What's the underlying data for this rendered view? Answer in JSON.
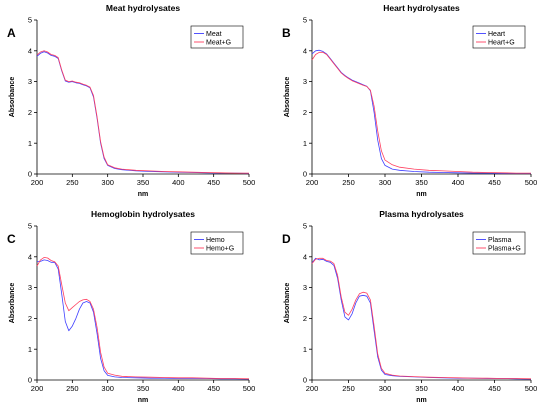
{
  "chart_data": [
    {
      "type": "line",
      "panel": "A",
      "title": "Meat hydrolysates",
      "xlabel": "nm",
      "ylabel": "Absorbance",
      "xlim": [
        200,
        500
      ],
      "ylim": [
        0,
        5
      ],
      "xticks": [
        200,
        250,
        300,
        350,
        400,
        450,
        500
      ],
      "yticks": [
        0,
        1,
        2,
        3,
        4,
        5
      ],
      "legend_position": "top-right",
      "colors": [
        "#3f3fff",
        "#ff3f5f"
      ],
      "series": [
        {
          "name": "Meat",
          "x": [
            200,
            205,
            210,
            215,
            220,
            225,
            230,
            235,
            240,
            245,
            250,
            255,
            260,
            265,
            270,
            275,
            280,
            285,
            290,
            295,
            300,
            310,
            320,
            340,
            360,
            380,
            400,
            420,
            440,
            460,
            480,
            500
          ],
          "y": [
            3.82,
            3.92,
            3.97,
            3.93,
            3.85,
            3.82,
            3.75,
            3.35,
            3.02,
            2.98,
            3.0,
            2.96,
            2.94,
            2.9,
            2.86,
            2.8,
            2.5,
            1.8,
            1.0,
            0.5,
            0.28,
            0.18,
            0.14,
            0.1,
            0.08,
            0.07,
            0.06,
            0.05,
            0.04,
            0.03,
            0.03,
            0.02
          ]
        },
        {
          "name": "Meat+G",
          "x": [
            200,
            205,
            210,
            215,
            220,
            225,
            230,
            235,
            240,
            245,
            250,
            255,
            260,
            265,
            270,
            275,
            280,
            285,
            290,
            295,
            300,
            310,
            320,
            340,
            360,
            380,
            400,
            420,
            440,
            460,
            480,
            500
          ],
          "y": [
            3.86,
            3.96,
            4.0,
            3.96,
            3.88,
            3.85,
            3.78,
            3.38,
            3.05,
            3.0,
            3.02,
            2.98,
            2.96,
            2.92,
            2.88,
            2.82,
            2.55,
            1.85,
            1.05,
            0.55,
            0.3,
            0.2,
            0.16,
            0.12,
            0.1,
            0.08,
            0.07,
            0.06,
            0.05,
            0.04,
            0.03,
            0.03
          ]
        }
      ]
    },
    {
      "type": "line",
      "panel": "B",
      "title": "Heart hydrolysates",
      "xlabel": "nm",
      "ylabel": "Absorbance",
      "xlim": [
        200,
        500
      ],
      "ylim": [
        0,
        5
      ],
      "xticks": [
        200,
        250,
        300,
        350,
        400,
        450,
        500
      ],
      "yticks": [
        0,
        1,
        2,
        3,
        4,
        5
      ],
      "legend_position": "top-right",
      "colors": [
        "#3f3fff",
        "#ff3f5f"
      ],
      "series": [
        {
          "name": "Heart",
          "x": [
            200,
            205,
            210,
            215,
            220,
            225,
            230,
            235,
            240,
            245,
            250,
            255,
            260,
            265,
            270,
            275,
            280,
            285,
            290,
            295,
            300,
            310,
            320,
            340,
            360,
            380,
            400,
            420,
            440,
            460,
            480,
            500
          ],
          "y": [
            3.9,
            4.0,
            4.02,
            3.98,
            3.9,
            3.75,
            3.6,
            3.45,
            3.3,
            3.2,
            3.12,
            3.05,
            3.0,
            2.95,
            2.9,
            2.85,
            2.7,
            2.0,
            1.1,
            0.5,
            0.28,
            0.16,
            0.12,
            0.08,
            0.06,
            0.05,
            0.04,
            0.03,
            0.03,
            0.02,
            0.02,
            0.02
          ]
        },
        {
          "name": "Heart+G",
          "x": [
            200,
            205,
            210,
            215,
            220,
            225,
            230,
            235,
            240,
            245,
            250,
            255,
            260,
            265,
            270,
            275,
            280,
            285,
            290,
            295,
            300,
            310,
            320,
            340,
            360,
            380,
            400,
            420,
            440,
            460,
            480,
            500
          ],
          "y": [
            3.7,
            3.88,
            3.95,
            3.95,
            3.88,
            3.73,
            3.58,
            3.43,
            3.28,
            3.18,
            3.1,
            3.03,
            2.98,
            2.93,
            2.88,
            2.84,
            2.72,
            2.2,
            1.4,
            0.75,
            0.45,
            0.3,
            0.22,
            0.16,
            0.12,
            0.1,
            0.08,
            0.06,
            0.05,
            0.04,
            0.03,
            0.03
          ]
        }
      ]
    },
    {
      "type": "line",
      "panel": "C",
      "title": "Hemoglobin hydrolysates",
      "xlabel": "nm",
      "ylabel": "Absorbance",
      "xlim": [
        200,
        500
      ],
      "ylim": [
        0,
        5
      ],
      "xticks": [
        200,
        250,
        300,
        350,
        400,
        450,
        500
      ],
      "yticks": [
        0,
        1,
        2,
        3,
        4,
        5
      ],
      "legend_position": "top-right",
      "colors": [
        "#3f3fff",
        "#ff3f5f"
      ],
      "series": [
        {
          "name": "Hemo",
          "x": [
            200,
            205,
            210,
            215,
            220,
            225,
            230,
            235,
            240,
            245,
            250,
            255,
            260,
            265,
            270,
            275,
            280,
            285,
            290,
            295,
            300,
            310,
            320,
            340,
            360,
            380,
            400,
            420,
            440,
            460,
            480,
            500
          ],
          "y": [
            3.85,
            3.85,
            3.9,
            3.88,
            3.82,
            3.82,
            3.6,
            2.8,
            1.9,
            1.6,
            1.75,
            2.0,
            2.3,
            2.5,
            2.55,
            2.5,
            2.2,
            1.5,
            0.7,
            0.3,
            0.15,
            0.1,
            0.08,
            0.07,
            0.06,
            0.06,
            0.05,
            0.05,
            0.05,
            0.04,
            0.04,
            0.03
          ]
        },
        {
          "name": "Hemo+G",
          "x": [
            200,
            205,
            210,
            215,
            220,
            225,
            230,
            235,
            240,
            245,
            250,
            255,
            260,
            265,
            270,
            275,
            280,
            285,
            290,
            295,
            300,
            310,
            320,
            340,
            360,
            380,
            400,
            420,
            440,
            460,
            480,
            500
          ],
          "y": [
            3.7,
            3.9,
            3.98,
            3.96,
            3.88,
            3.84,
            3.7,
            3.1,
            2.5,
            2.25,
            2.35,
            2.45,
            2.55,
            2.6,
            2.62,
            2.55,
            2.3,
            1.7,
            0.9,
            0.42,
            0.22,
            0.16,
            0.12,
            0.1,
            0.09,
            0.08,
            0.07,
            0.07,
            0.06,
            0.05,
            0.05,
            0.04
          ]
        }
      ]
    },
    {
      "type": "line",
      "panel": "D",
      "title": "Plasma hydrolysates",
      "xlabel": "nm",
      "ylabel": "Absorbance",
      "xlim": [
        200,
        500
      ],
      "ylim": [
        0,
        5
      ],
      "xticks": [
        200,
        250,
        300,
        350,
        400,
        450,
        500
      ],
      "yticks": [
        0,
        1,
        2,
        3,
        4,
        5
      ],
      "legend_position": "top-right",
      "colors": [
        "#3f3fff",
        "#ff3f5f"
      ],
      "series": [
        {
          "name": "Plasma",
          "x": [
            200,
            205,
            210,
            215,
            220,
            225,
            230,
            235,
            240,
            245,
            250,
            255,
            260,
            265,
            270,
            275,
            280,
            285,
            290,
            295,
            300,
            310,
            320,
            340,
            360,
            380,
            400,
            420,
            440,
            460,
            480,
            500
          ],
          "y": [
            3.8,
            3.95,
            3.9,
            3.92,
            3.85,
            3.82,
            3.72,
            3.3,
            2.6,
            2.05,
            1.95,
            2.15,
            2.5,
            2.72,
            2.75,
            2.72,
            2.5,
            1.6,
            0.75,
            0.32,
            0.18,
            0.14,
            0.12,
            0.1,
            0.08,
            0.07,
            0.06,
            0.06,
            0.05,
            0.05,
            0.04,
            0.03
          ]
        },
        {
          "name": "Plasma+G",
          "x": [
            200,
            205,
            210,
            215,
            220,
            225,
            230,
            235,
            240,
            245,
            250,
            255,
            260,
            265,
            270,
            275,
            280,
            285,
            290,
            295,
            300,
            310,
            320,
            340,
            360,
            380,
            400,
            420,
            440,
            460,
            480,
            500
          ],
          "y": [
            3.78,
            3.92,
            3.95,
            3.95,
            3.88,
            3.86,
            3.78,
            3.4,
            2.7,
            2.2,
            2.1,
            2.3,
            2.6,
            2.8,
            2.85,
            2.82,
            2.6,
            1.75,
            0.85,
            0.38,
            0.22,
            0.16,
            0.13,
            0.11,
            0.09,
            0.08,
            0.07,
            0.06,
            0.06,
            0.05,
            0.05,
            0.04
          ]
        }
      ]
    }
  ]
}
